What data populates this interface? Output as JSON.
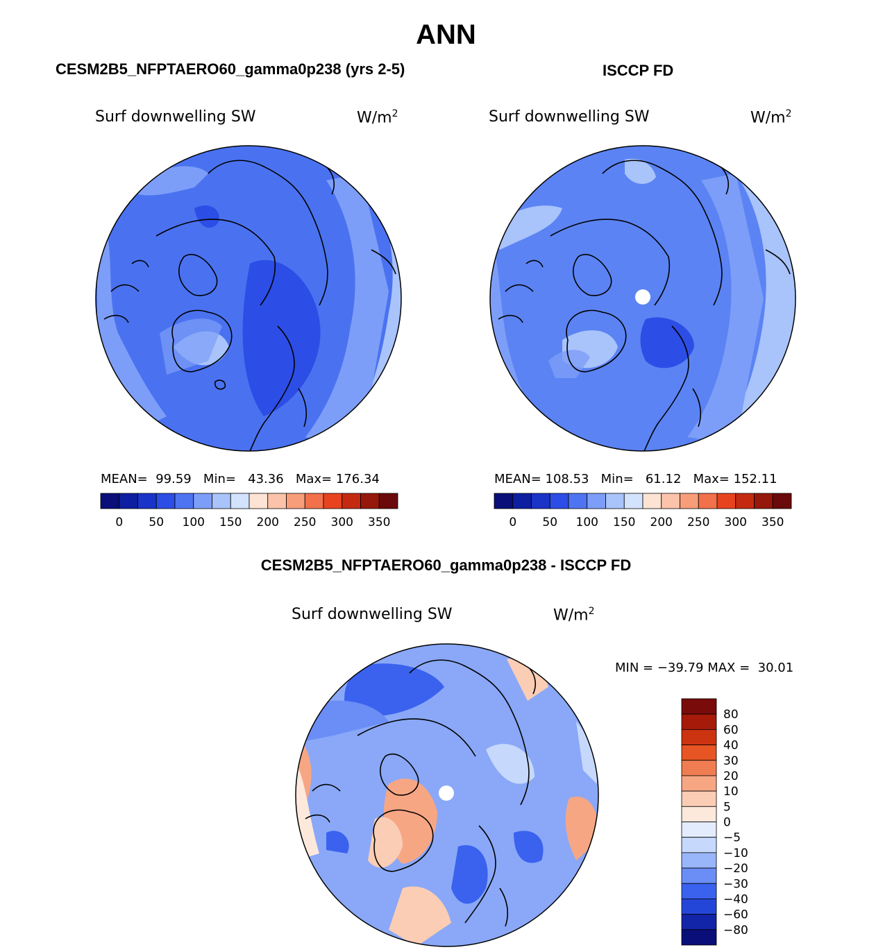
{
  "figure": {
    "title": "ANN",
    "left_title": "CESM2B5_NFPTAERO60_gamma0p238 (yrs 2-5)",
    "right_title": "ISCCP FD",
    "diff_title": "CESM2B5_NFPTAERO60_gamma0p238 - ISCCP FD"
  },
  "panels": {
    "model": {
      "variable": "Surf downwelling SW",
      "units": "W/m",
      "units_exp": "2",
      "stats": {
        "mean_label": "MEAN=",
        "mean": "99.59",
        "min_label": "Min=",
        "min": "43.36",
        "max_label": "Max=",
        "max": "176.34"
      }
    },
    "obs": {
      "variable": "Surf downwelling SW",
      "units": "W/m",
      "units_exp": "2",
      "stats": {
        "mean_label": "MEAN=",
        "mean": "108.53",
        "min_label": "Min=",
        "min": "61.12",
        "max_label": "Max=",
        "max": "152.11"
      }
    },
    "diff": {
      "variable": "Surf downwelling SW",
      "units": "W/m",
      "units_exp": "2",
      "stats": {
        "min_label": "MIN =",
        "min": "−39.79",
        "max_label": "MAX =",
        "max": "30.01"
      }
    }
  },
  "chart_data": [
    {
      "type": "heatmap",
      "title": "Surf downwelling SW",
      "projection": "north polar stereographic",
      "units": "W/m^2",
      "mean": 99.59,
      "min": 43.36,
      "max": 176.34,
      "colorbar_ticks": [
        "0",
        "50",
        "100",
        "150",
        "200",
        "250",
        "300",
        "350"
      ],
      "levels": [
        0,
        25,
        50,
        75,
        100,
        125,
        150,
        175,
        200,
        225,
        250,
        275,
        300,
        325,
        350
      ]
    },
    {
      "type": "heatmap",
      "title": "Surf downwelling SW",
      "projection": "north polar stereographic",
      "units": "W/m^2",
      "mean": 108.53,
      "min": 61.12,
      "max": 152.11,
      "colorbar_ticks": [
        "0",
        "50",
        "100",
        "150",
        "200",
        "250",
        "300",
        "350"
      ],
      "levels": [
        0,
        25,
        50,
        75,
        100,
        125,
        150,
        175,
        200,
        225,
        250,
        275,
        300,
        325,
        350
      ]
    },
    {
      "type": "heatmap",
      "title": "Surf downwelling SW",
      "projection": "north polar stereographic",
      "units": "W/m^2",
      "min": -39.79,
      "max": 30.01,
      "colorbar_ticks": [
        "80",
        "60",
        "40",
        "30",
        "20",
        "10",
        "5",
        "0",
        "−5",
        "−10",
        "−20",
        "−30",
        "−40",
        "−60",
        "−80"
      ]
    }
  ],
  "colors": {
    "abs_scale": [
      "#0a0e78",
      "#0d1ea0",
      "#1a34c8",
      "#2c4ee6",
      "#4f74f2",
      "#7d9ef8",
      "#a9c3fb",
      "#d3e3fd",
      "#fde3d3",
      "#fbc3a9",
      "#f89d7a",
      "#f2704a",
      "#e8431f",
      "#c52a10",
      "#96170b",
      "#6a0a0a"
    ],
    "diff_scale": [
      "#0a0e78",
      "#1224a8",
      "#2446d8",
      "#3a62ee",
      "#6a8ef6",
      "#9ab6fa",
      "#c6d9fc",
      "#e3ecfd",
      "#fde8dc",
      "#fbcdb4",
      "#f7a684",
      "#f07d52",
      "#e65523",
      "#cc3310",
      "#a61a0a",
      "#7a0b0b"
    ],
    "map_base_model": "#4a72f0",
    "map_base_obs": "#5b83f3",
    "map_base_diff": "#8aa8f7"
  }
}
